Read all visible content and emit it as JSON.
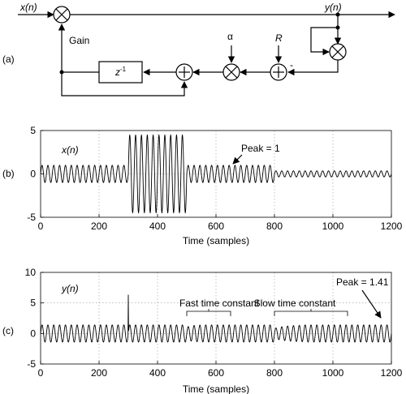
{
  "diagram": {
    "panel_label": "(a)",
    "input_label": "x(n)",
    "output_label": "y(n)",
    "gain_label": "Gain",
    "delay_label": "z",
    "delay_exponent": "-1",
    "alpha_label": "α",
    "r_label": "R",
    "minus_sign": "-",
    "adder_symbol": "+",
    "multiplier_symbol": "×"
  },
  "chart_data": [
    {
      "type": "line",
      "panel_label": "(b)",
      "series_label": "x(n)",
      "xlabel": "Time (samples)",
      "xlim": [
        0,
        1200
      ],
      "ylim": [
        -5,
        5
      ],
      "xticks": [
        0,
        200,
        400,
        600,
        800,
        1000,
        1200
      ],
      "yticks": [
        5,
        0,
        -5
      ],
      "grid": true,
      "signal": {
        "cycle_samples": 20,
        "segments": [
          {
            "from": 0,
            "to": 300,
            "amplitude": 1
          },
          {
            "from": 300,
            "to": 500,
            "amplitude": 4.5
          },
          {
            "from": 500,
            "to": 800,
            "amplitude": 1
          },
          {
            "from": 800,
            "to": 1200,
            "amplitude": 0.35
          }
        ]
      },
      "annotations": [
        {
          "text": "Peak = 1",
          "x": 640,
          "y": 1
        }
      ]
    },
    {
      "type": "line",
      "panel_label": "(c)",
      "series_label": "y(n)",
      "xlabel": "Time (samples)",
      "xlim": [
        0,
        1200
      ],
      "ylim": [
        -5,
        10
      ],
      "xticks": [
        0,
        200,
        400,
        600,
        800,
        1000,
        1200
      ],
      "yticks": [
        10,
        5,
        0,
        -5
      ],
      "grid": true,
      "signal": {
        "cycle_samples": 20,
        "amplitude": 1.41,
        "spike": {
          "x": 300,
          "y": 6.3
        }
      },
      "annotations": [
        {
          "text": "Fast time constant",
          "from": 500,
          "to": 650
        },
        {
          "text": "Slow time constant",
          "from": 800,
          "to": 1050
        },
        {
          "text": "Peak = 1.41",
          "x": 1175,
          "y": 1.41
        }
      ]
    }
  ]
}
